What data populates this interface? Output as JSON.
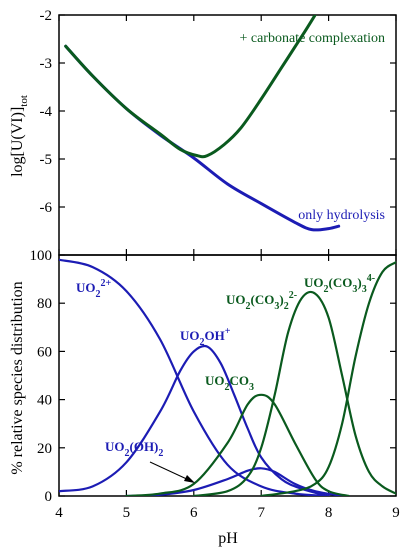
{
  "chart_data": [
    {
      "type": "line",
      "ylabel": "log[U(VI)]",
      "ylabel_subscript": "tot",
      "xlim": [
        4,
        9
      ],
      "ylim": [
        -7,
        -2
      ],
      "yticks": [
        "-2",
        "-3",
        "-4",
        "-5",
        "-6"
      ],
      "series": [
        {
          "color": "#1c1cb4",
          "x": [
            4.1,
            4.5,
            5.0,
            5.5,
            6.0,
            6.5,
            7.0,
            7.5,
            7.75,
            8.0,
            8.15
          ],
          "values": [
            -2.65,
            -3.27,
            -3.95,
            -4.5,
            -4.98,
            -5.52,
            -5.93,
            -6.32,
            -6.47,
            -6.45,
            -6.4
          ]
        },
        {
          "color": "#0a5a1e",
          "x": [
            4.1,
            4.5,
            5.0,
            5.5,
            5.8,
            6.05,
            6.2,
            6.45,
            6.7,
            7.0,
            7.3,
            7.6,
            7.8
          ],
          "values": [
            -2.65,
            -3.27,
            -3.95,
            -4.48,
            -4.8,
            -4.93,
            -4.93,
            -4.7,
            -4.35,
            -3.75,
            -3.1,
            -2.45,
            -2.0
          ]
        }
      ],
      "annotations": [
        {
          "text": "+ carbonate complexation",
          "color": "#0a5a1e"
        },
        {
          "text": "only hydrolysis",
          "color": "#1c1cb4"
        }
      ]
    },
    {
      "type": "line",
      "xlabel": "pH",
      "ylabel": "% relative species distribution",
      "xlim": [
        4,
        9
      ],
      "ylim": [
        0,
        100
      ],
      "xticks": [
        "4",
        "5",
        "6",
        "7",
        "8",
        "9"
      ],
      "yticks": [
        "0",
        "20",
        "40",
        "60",
        "80",
        "100"
      ],
      "series": [
        {
          "name_parts": [
            "UO",
            "2",
            "2+"
          ],
          "color": "#1c1cb4",
          "x": [
            4.0,
            4.5,
            5.0,
            5.5,
            6.0,
            6.5,
            7.0,
            7.5,
            8.0
          ],
          "values": [
            98,
            95,
            85,
            65,
            35,
            13,
            4,
            1,
            0
          ]
        },
        {
          "name_parts": [
            "UO",
            "2",
            "OH",
            "+"
          ],
          "color": "#1c1cb4",
          "x": [
            4.0,
            4.5,
            5.0,
            5.5,
            5.8,
            6.0,
            6.2,
            6.4,
            6.6,
            6.8,
            7.0,
            7.3,
            7.6,
            8.0
          ],
          "values": [
            2,
            4,
            14,
            35,
            52,
            60,
            62,
            55,
            42,
            28,
            16,
            7,
            3,
            0
          ]
        },
        {
          "name_parts": [
            "UO",
            "2",
            "(OH)",
            "2"
          ],
          "color": "#1c1cb4",
          "x": [
            5.0,
            5.5,
            6.0,
            6.5,
            6.8,
            7.0,
            7.2,
            7.5,
            7.8,
            8.2
          ],
          "values": [
            0,
            0.5,
            2.5,
            7,
            10.5,
            11.5,
            10,
            5,
            2,
            0
          ]
        },
        {
          "name_parts": [
            "UO",
            "2",
            "CO",
            "3"
          ],
          "color": "#0a5a1e",
          "x": [
            5.0,
            5.5,
            6.0,
            6.5,
            6.8,
            7.0,
            7.2,
            7.5,
            7.8,
            8.0,
            8.3
          ],
          "values": [
            0,
            1,
            5,
            22,
            38,
            42,
            38,
            22,
            7,
            2,
            0
          ]
        },
        {
          "name_parts": [
            "UO",
            "2",
            "(CO",
            "3",
            ")",
            "2",
            "2-"
          ],
          "color": "#0a5a1e",
          "x": [
            6.0,
            6.5,
            6.8,
            7.0,
            7.2,
            7.4,
            7.6,
            7.8,
            8.0,
            8.2,
            8.4,
            8.6,
            8.8,
            9.0
          ],
          "values": [
            0,
            2,
            8,
            20,
            42,
            68,
            82,
            84,
            74,
            50,
            25,
            10,
            4,
            1
          ]
        },
        {
          "name_parts": [
            "UO",
            "2",
            "(CO",
            "3",
            ")",
            "3",
            "4-"
          ],
          "color": "#0a5a1e",
          "x": [
            7.0,
            7.5,
            7.8,
            8.0,
            8.2,
            8.4,
            8.6,
            8.8,
            9.0
          ],
          "values": [
            0,
            2,
            5,
            12,
            30,
            58,
            80,
            93,
            97
          ]
        }
      ]
    }
  ]
}
